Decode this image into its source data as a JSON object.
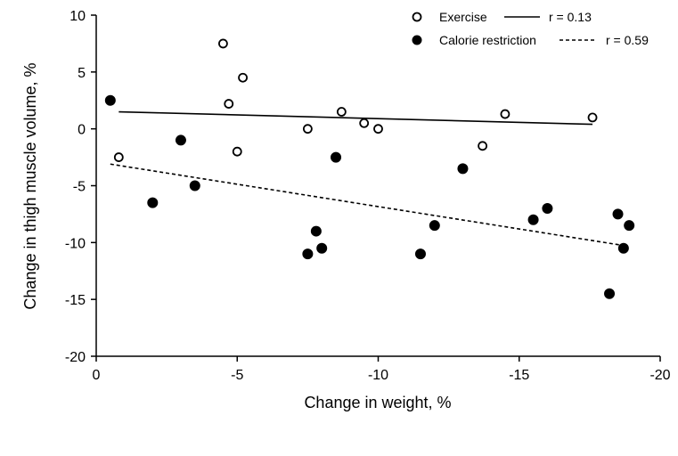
{
  "chart_data": {
    "type": "scatter",
    "xlabel": "Change in weight, %",
    "ylabel": "Change in thigh muscle volume, %",
    "xlim": [
      0,
      -20
    ],
    "ylim": [
      -20,
      10
    ],
    "x_ticks": [
      0,
      -5,
      -10,
      -15,
      -20
    ],
    "y_ticks": [
      10,
      5,
      0,
      -5,
      -10,
      -15,
      -20
    ],
    "grid": false,
    "legend_position": "top-right",
    "series": [
      {
        "name": "Exercise",
        "marker": "open-circle",
        "line_style": "solid",
        "r_label": "r = 0.13",
        "trend": {
          "x": [
            -0.8,
            -17.6
          ],
          "y": [
            1.5,
            0.4
          ]
        },
        "points": [
          {
            "x": -0.8,
            "y": -2.5
          },
          {
            "x": -4.5,
            "y": 7.5
          },
          {
            "x": -4.7,
            "y": 2.2
          },
          {
            "x": -5.0,
            "y": -2.0
          },
          {
            "x": -5.2,
            "y": 4.5
          },
          {
            "x": -7.5,
            "y": 0.0
          },
          {
            "x": -8.7,
            "y": 1.5
          },
          {
            "x": -9.5,
            "y": 0.5
          },
          {
            "x": -10.0,
            "y": 0.0
          },
          {
            "x": -13.7,
            "y": -1.5
          },
          {
            "x": -14.5,
            "y": 1.3
          },
          {
            "x": -17.6,
            "y": 1.0
          }
        ]
      },
      {
        "name": "Calorie restriction",
        "marker": "filled-circle",
        "line_style": "dashed",
        "r_label": "r = 0.59",
        "trend": {
          "x": [
            -0.5,
            -18.8
          ],
          "y": [
            -3.1,
            -10.3
          ]
        },
        "points": [
          {
            "x": -0.5,
            "y": 2.5
          },
          {
            "x": -2.0,
            "y": -6.5
          },
          {
            "x": -3.0,
            "y": -1.0
          },
          {
            "x": -3.5,
            "y": -5.0
          },
          {
            "x": -7.5,
            "y": -11.0
          },
          {
            "x": -7.8,
            "y": -9.0
          },
          {
            "x": -8.0,
            "y": -10.5
          },
          {
            "x": -8.5,
            "y": -2.5
          },
          {
            "x": -11.5,
            "y": -11.0
          },
          {
            "x": -12.0,
            "y": -8.5
          },
          {
            "x": -13.0,
            "y": -3.5
          },
          {
            "x": -15.5,
            "y": -8.0
          },
          {
            "x": -16.0,
            "y": -7.0
          },
          {
            "x": -18.2,
            "y": -14.5
          },
          {
            "x": -18.5,
            "y": -7.5
          },
          {
            "x": -18.7,
            "y": -10.5
          },
          {
            "x": -18.9,
            "y": -8.5
          }
        ]
      }
    ]
  }
}
